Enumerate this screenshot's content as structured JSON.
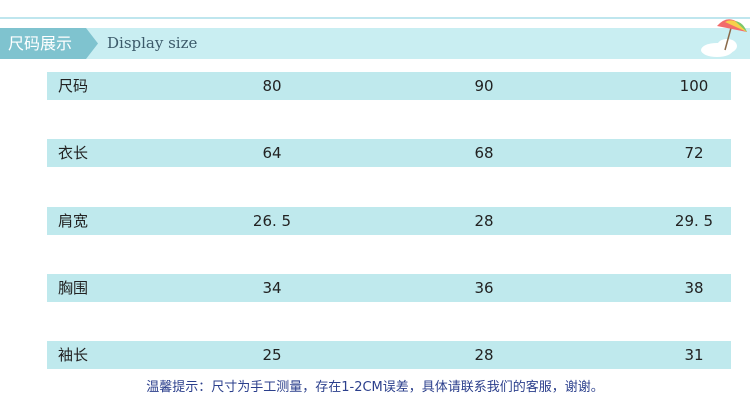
{
  "header": {
    "title": "尺码展示",
    "subtitle": "Display size"
  },
  "table": {
    "rows": [
      [
        "尺码",
        "80",
        "90",
        "100"
      ],
      [
        "衣长",
        "64",
        "68",
        "72"
      ],
      [
        "肩宽",
        "26. 5",
        "28",
        "29. 5"
      ],
      [
        "胸围",
        "34",
        "36",
        "38"
      ],
      [
        "袖长",
        "25",
        "28",
        "31"
      ]
    ]
  },
  "footer": {
    "note": "温馨提示：尺寸为手工测量，存在1-2CM误差，具体请联系我们的客服，谢谢。"
  }
}
